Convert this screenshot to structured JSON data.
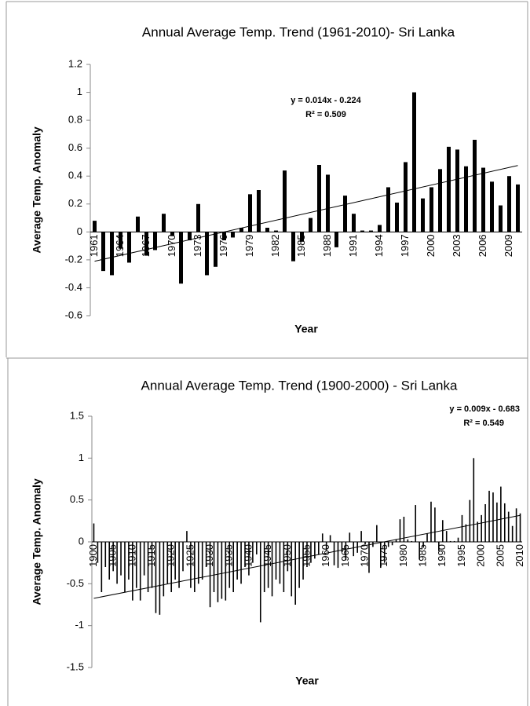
{
  "chart_data": [
    {
      "type": "bar",
      "title": "Annual Average Temp. Trend (1961-2010)- Sri Lanka",
      "x_label": "Year",
      "y_label": "Average Temp. Anomaly",
      "color": "#000000",
      "categories": [
        "1961",
        null,
        null,
        "1964",
        null,
        null,
        "1967",
        null,
        null,
        "1970",
        null,
        null,
        "1973",
        null,
        null,
        "1976",
        null,
        null,
        "1979",
        null,
        null,
        "1982",
        null,
        null,
        "1985",
        null,
        null,
        "1988",
        null,
        null,
        "1991",
        null,
        null,
        "1994",
        null,
        null,
        "1997",
        null,
        null,
        "2000",
        null,
        null,
        "2003",
        null,
        null,
        "2006",
        null,
        null,
        "2009",
        null
      ],
      "values": [
        0.08,
        -0.28,
        -0.31,
        -0.12,
        -0.22,
        0.11,
        -0.17,
        -0.13,
        0.13,
        -0.03,
        -0.37,
        -0.06,
        0.2,
        -0.31,
        -0.25,
        -0.06,
        -0.04,
        0.03,
        0.27,
        0.3,
        0.03,
        0.01,
        0.44,
        -0.21,
        -0.07,
        0.1,
        0.48,
        0.41,
        -0.11,
        0.26,
        0.13,
        0.01,
        0.01,
        0.05,
        0.32,
        0.21,
        0.5,
        1.0,
        0.24,
        0.32,
        0.45,
        0.61,
        0.59,
        0.47,
        0.66,
        0.46,
        0.36,
        0.19,
        0.4,
        0.34
      ],
      "ylim": [
        -0.6,
        1.2
      ],
      "yticks": [
        -0.6,
        -0.4,
        -0.2,
        0,
        0.2,
        0.4,
        0.6,
        0.8,
        1,
        1.2
      ],
      "trendline": {
        "slope": 0.014,
        "intercept": -0.224,
        "label": "y = 0.014x - 0.224",
        "r2_label": "R² = 0.509"
      }
    },
    {
      "type": "bar",
      "title": "Annual Average Temp. Trend (1900-2000) - Sri Lanka",
      "x_label": "Year",
      "y_label": "Average Temp. Anomaly",
      "color": "#000000",
      "categories": [
        "1900",
        null,
        null,
        null,
        null,
        "1905",
        null,
        null,
        null,
        null,
        "1910",
        null,
        null,
        null,
        null,
        "1915",
        null,
        null,
        null,
        null,
        "1920",
        null,
        null,
        null,
        null,
        "1925",
        null,
        null,
        null,
        null,
        "1930",
        null,
        null,
        null,
        null,
        "1935",
        null,
        null,
        null,
        null,
        "1940",
        null,
        null,
        null,
        null,
        "1945",
        null,
        null,
        null,
        null,
        "1950",
        null,
        null,
        null,
        null,
        "1955",
        null,
        null,
        null,
        null,
        "1960",
        null,
        null,
        null,
        null,
        "1965",
        null,
        null,
        null,
        null,
        "1970",
        null,
        null,
        null,
        null,
        "1975",
        null,
        null,
        null,
        null,
        "1980",
        null,
        null,
        null,
        null,
        "1985",
        null,
        null,
        null,
        null,
        "1990",
        null,
        null,
        null,
        null,
        "1995",
        null,
        null,
        null,
        null,
        "2000",
        null,
        null,
        null,
        null,
        "2005",
        null,
        null,
        null,
        null,
        "2010"
      ],
      "values": [
        0.22,
        -0.25,
        -0.6,
        -0.3,
        -0.45,
        -0.35,
        -0.5,
        -0.4,
        -0.6,
        -0.45,
        -0.7,
        -0.55,
        -0.7,
        -0.4,
        -0.6,
        -0.55,
        -0.85,
        -0.87,
        -0.65,
        -0.5,
        -0.6,
        -0.45,
        -0.55,
        -0.35,
        0.13,
        -0.55,
        -0.6,
        -0.5,
        -0.45,
        -0.3,
        -0.78,
        -0.6,
        -0.72,
        -0.68,
        -0.7,
        -0.55,
        -0.6,
        -0.45,
        -0.5,
        -0.3,
        -0.4,
        -0.25,
        -0.15,
        -0.96,
        -0.6,
        -0.55,
        -0.65,
        -0.45,
        -0.5,
        -0.6,
        -0.35,
        -0.65,
        -0.75,
        -0.55,
        -0.45,
        -0.3,
        -0.25,
        -0.2,
        -0.15,
        0.1,
        -0.1,
        0.08,
        -0.28,
        -0.31,
        -0.12,
        -0.22,
        0.11,
        -0.17,
        -0.13,
        0.13,
        -0.03,
        -0.37,
        -0.06,
        0.2,
        -0.31,
        -0.25,
        -0.06,
        -0.04,
        0.03,
        0.27,
        0.3,
        0.03,
        0.01,
        0.44,
        -0.21,
        -0.07,
        0.1,
        0.48,
        0.41,
        -0.11,
        0.26,
        0.13,
        0.01,
        0.01,
        0.05,
        0.32,
        0.21,
        0.5,
        1.0,
        0.24,
        0.32,
        0.45,
        0.61,
        0.59,
        0.47,
        0.66,
        0.46,
        0.36,
        0.19,
        0.4,
        0.34
      ],
      "ylim": [
        -1.5,
        1.5
      ],
      "yticks": [
        -1.5,
        -1,
        -0.5,
        0,
        0.5,
        1,
        1.5
      ],
      "trendline": {
        "slope": 0.009,
        "intercept": -0.683,
        "label": "y = 0.009x - 0.683",
        "r2_label": "R² = 0.549"
      }
    }
  ]
}
